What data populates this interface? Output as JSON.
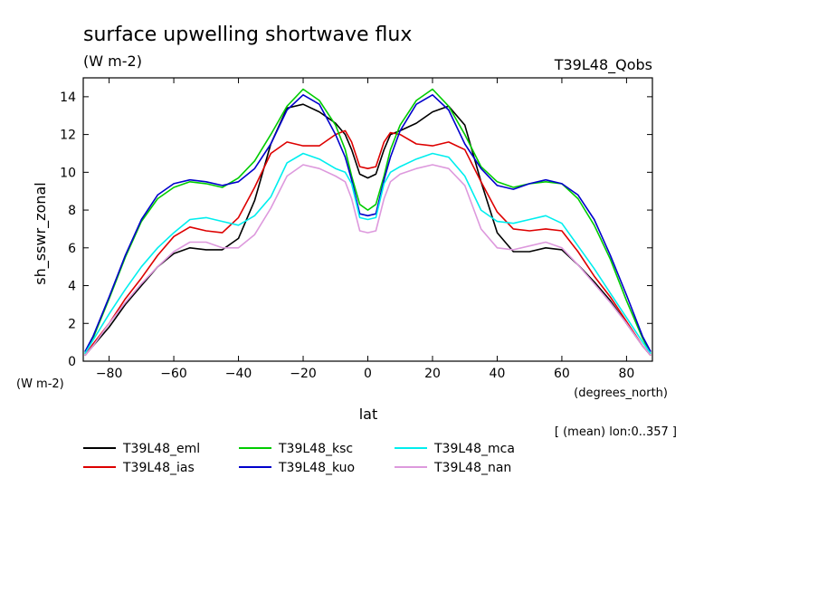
{
  "header": {
    "title": "surface upwelling shortwave flux",
    "units": "(W m-2)",
    "run_label": "T39L48_Qobs"
  },
  "axes": {
    "ylabel": "sh_sswr_zonal",
    "y_units": "(W m-2)",
    "xlabel": "lat",
    "x_units": "(degrees_north)",
    "note": "[ (mean) lon:0..357 ]"
  },
  "chart_data": {
    "type": "line",
    "title": "surface upwelling shortwave flux",
    "xlabel": "lat",
    "ylabel": "sh_sswr_zonal",
    "xlim": [
      -88,
      88
    ],
    "ylim": [
      0,
      15
    ],
    "xticks": [
      -80,
      -60,
      -40,
      -20,
      0,
      20,
      40,
      60,
      80
    ],
    "yticks": [
      0,
      2,
      4,
      6,
      8,
      10,
      12,
      14
    ],
    "x": [
      -87.5,
      -85,
      -80,
      -75,
      -70,
      -65,
      -60,
      -55,
      -50,
      -45,
      -40,
      -35,
      -30,
      -25,
      -20,
      -15,
      -10,
      -7,
      -5,
      -2.5,
      0,
      2.5,
      5,
      7,
      10,
      15,
      20,
      25,
      30,
      35,
      40,
      45,
      50,
      55,
      60,
      65,
      70,
      75,
      80,
      85,
      87.5
    ],
    "series": [
      {
        "name": "T39L48_eml",
        "color": "#000000",
        "values": [
          0.3,
          0.8,
          1.8,
          3.0,
          4.0,
          5.0,
          5.7,
          6.0,
          5.9,
          5.9,
          6.5,
          8.5,
          11.5,
          13.4,
          13.6,
          13.2,
          12.6,
          12.0,
          11.2,
          9.9,
          9.7,
          9.9,
          11.2,
          12.0,
          12.2,
          12.6,
          13.2,
          13.5,
          12.5,
          9.5,
          6.8,
          5.8,
          5.8,
          6.0,
          5.9,
          5.1,
          4.2,
          3.2,
          2.0,
          0.8,
          0.3
        ]
      },
      {
        "name": "T39L48_ias",
        "color": "#dd0000",
        "values": [
          0.3,
          0.9,
          2.0,
          3.3,
          4.4,
          5.6,
          6.6,
          7.1,
          6.9,
          6.8,
          7.6,
          9.2,
          11.0,
          11.6,
          11.4,
          11.4,
          12.0,
          12.2,
          11.6,
          10.3,
          10.2,
          10.3,
          11.6,
          12.1,
          12.0,
          11.5,
          11.4,
          11.6,
          11.2,
          9.5,
          7.9,
          7.0,
          6.9,
          7.0,
          6.9,
          5.8,
          4.5,
          3.4,
          2.1,
          0.8,
          0.3
        ]
      },
      {
        "name": "T39L48_ksc",
        "color": "#00cc00",
        "values": [
          0.4,
          1.2,
          3.3,
          5.5,
          7.4,
          8.6,
          9.2,
          9.5,
          9.4,
          9.2,
          9.7,
          10.6,
          12.0,
          13.5,
          14.4,
          13.8,
          12.5,
          11.2,
          9.8,
          8.3,
          8.0,
          8.3,
          9.8,
          11.2,
          12.5,
          13.8,
          14.4,
          13.5,
          12.0,
          10.3,
          9.5,
          9.2,
          9.4,
          9.5,
          9.4,
          8.6,
          7.2,
          5.4,
          3.2,
          1.2,
          0.4
        ]
      },
      {
        "name": "T39L48_kuo",
        "color": "#0000cc",
        "values": [
          0.5,
          1.3,
          3.4,
          5.6,
          7.5,
          8.8,
          9.4,
          9.6,
          9.5,
          9.3,
          9.5,
          10.2,
          11.5,
          13.3,
          14.1,
          13.6,
          12.0,
          10.8,
          9.6,
          7.8,
          7.7,
          7.8,
          9.6,
          10.8,
          12.2,
          13.6,
          14.1,
          13.3,
          11.5,
          10.2,
          9.3,
          9.1,
          9.4,
          9.6,
          9.4,
          8.8,
          7.5,
          5.6,
          3.5,
          1.3,
          0.5
        ]
      },
      {
        "name": "T39L48_mca",
        "color": "#00eeee",
        "values": [
          0.4,
          1.1,
          2.5,
          3.8,
          5.0,
          6.0,
          6.8,
          7.5,
          7.6,
          7.4,
          7.2,
          7.7,
          8.7,
          10.5,
          11.0,
          10.7,
          10.2,
          10.0,
          9.4,
          7.6,
          7.5,
          7.6,
          9.4,
          10.0,
          10.3,
          10.7,
          11.0,
          10.8,
          9.8,
          8.0,
          7.4,
          7.3,
          7.5,
          7.7,
          7.3,
          6.1,
          4.9,
          3.6,
          2.3,
          1.0,
          0.4
        ]
      },
      {
        "name": "T39L48_nan",
        "color": "#dd99dd",
        "values": [
          0.3,
          0.8,
          2.0,
          3.1,
          4.1,
          5.0,
          5.8,
          6.3,
          6.3,
          6.0,
          6.0,
          6.7,
          8.1,
          9.8,
          10.4,
          10.2,
          9.8,
          9.5,
          8.6,
          6.9,
          6.8,
          6.9,
          8.6,
          9.5,
          9.9,
          10.2,
          10.4,
          10.2,
          9.3,
          7.0,
          6.0,
          5.9,
          6.1,
          6.3,
          6.0,
          5.1,
          4.1,
          3.1,
          2.0,
          0.8,
          0.3
        ]
      }
    ],
    "grid": false,
    "legend_position": "bottom-left"
  }
}
